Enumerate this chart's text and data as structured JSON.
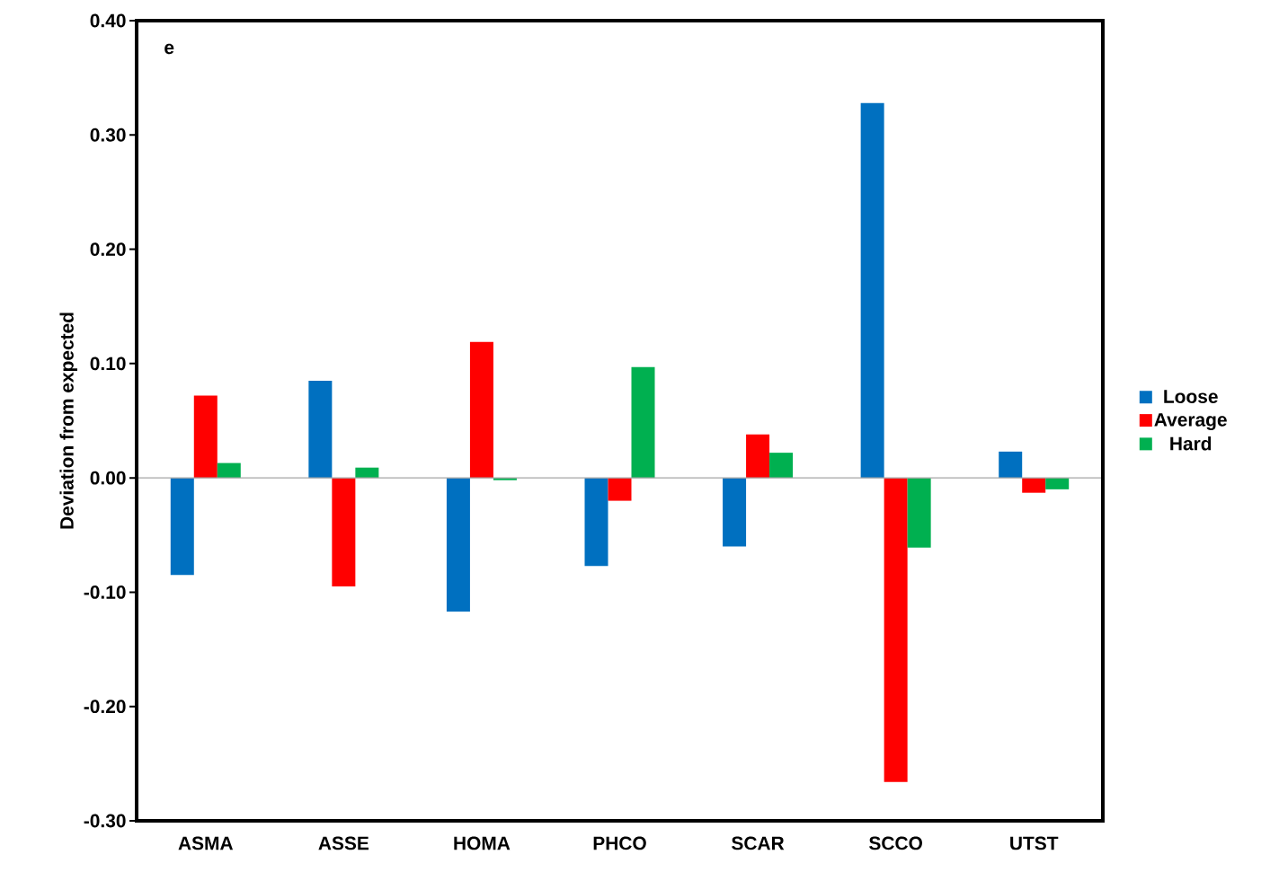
{
  "chart_data": {
    "type": "bar",
    "ylabel": "Deviation from expected",
    "annotations": [
      "e"
    ],
    "categories": [
      "ASMA",
      "ASSE",
      "HOMA",
      "PHCO",
      "SCAR",
      "SCCO",
      "UTST"
    ],
    "series": [
      {
        "name": "Loose",
        "color": "#0070c0",
        "values": [
          -0.085,
          0.085,
          -0.117,
          -0.077,
          -0.06,
          0.328,
          0.023
        ]
      },
      {
        "name": "Average",
        "color": "#ff0000",
        "values": [
          0.072,
          -0.095,
          0.119,
          -0.02,
          0.038,
          -0.266,
          -0.013
        ]
      },
      {
        "name": "Hard",
        "color": "#00b050",
        "values": [
          0.013,
          0.009,
          -0.002,
          0.097,
          0.022,
          -0.061,
          -0.01
        ]
      }
    ],
    "ylim": [
      -0.3,
      0.4
    ],
    "yticks": [
      {
        "value": -0.3,
        "label": "-0.30"
      },
      {
        "value": -0.2,
        "label": "-0.20"
      },
      {
        "value": -0.1,
        "label": "-0.10"
      },
      {
        "value": 0,
        "label": "0.00"
      },
      {
        "value": 0.1,
        "label": "0.10"
      },
      {
        "value": 0.2,
        "label": "0.20"
      },
      {
        "value": 0.3,
        "label": "0.30"
      },
      {
        "value": 0.4,
        "label": "0.40"
      }
    ],
    "ref_lines": [
      {
        "axis": "y",
        "value": 0,
        "color": "#a6a6a6"
      }
    ],
    "grid": false,
    "legend": "right"
  }
}
